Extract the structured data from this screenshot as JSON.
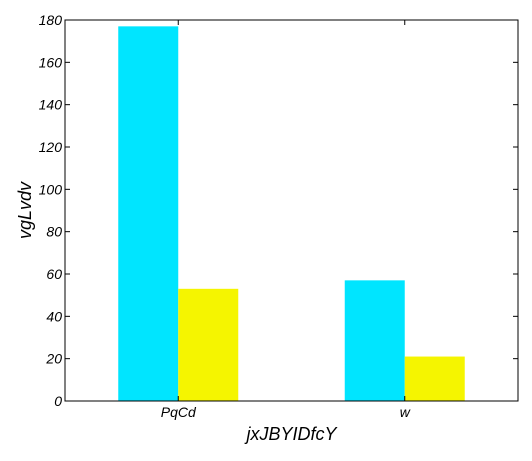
{
  "chart_data": {
    "type": "bar",
    "title": "",
    "xlabel": "jxJBYIDfcY",
    "ylabel": "vgLvdv",
    "categories": [
      "PqCd",
      "w"
    ],
    "series": [
      {
        "values": [
          177,
          57
        ],
        "color": "#00e5ff"
      },
      {
        "values": [
          53,
          21
        ],
        "color": "#f5f500"
      }
    ],
    "ylim": [
      0,
      180
    ],
    "yticks": [
      "0",
      "20",
      "40",
      "60",
      "80",
      "100",
      "120",
      "140",
      "160",
      "180"
    ],
    "grid": false,
    "legend": "none"
  }
}
